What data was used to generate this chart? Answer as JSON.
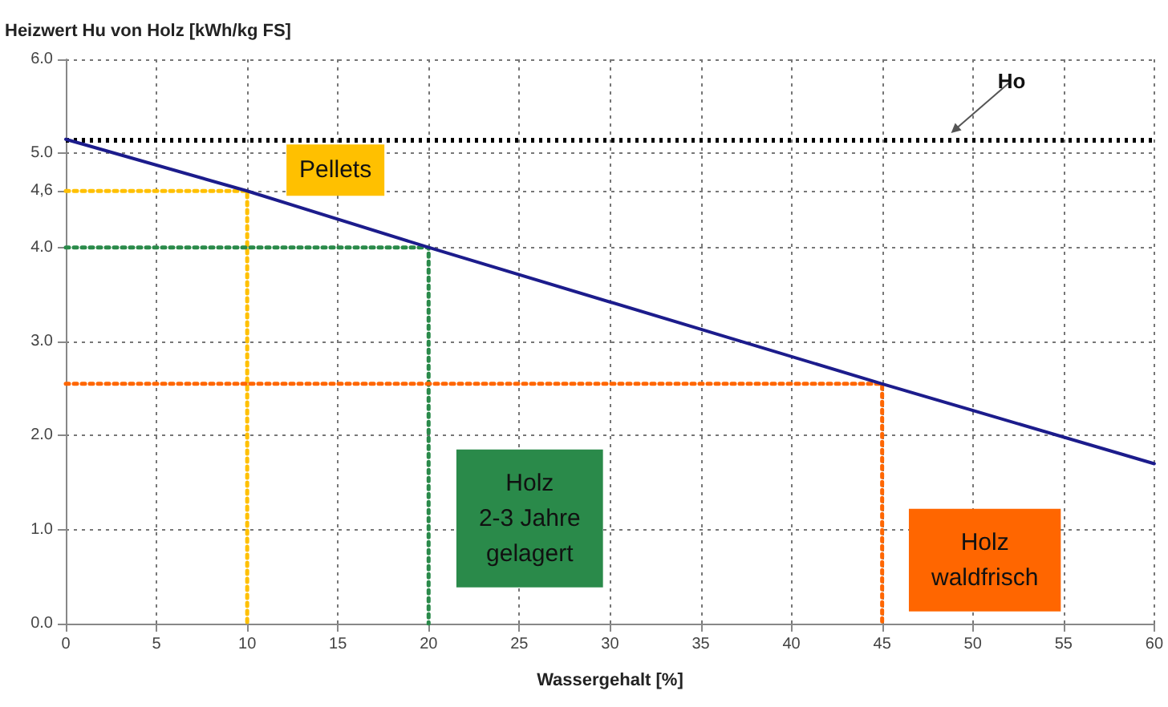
{
  "chart_data": {
    "type": "line",
    "ylabel": "Heizwert Hu von Holz [kWh/kg FS]",
    "xlabel": "Wassergehalt [%]",
    "xlim": [
      0,
      60
    ],
    "xticks": [
      0,
      5,
      10,
      15,
      20,
      25,
      30,
      35,
      40,
      45,
      50,
      55,
      60
    ],
    "ylim": [
      0,
      6
    ],
    "yticks": [
      {
        "value": 0,
        "label": "0.0"
      },
      {
        "value": 1,
        "label": "1.0"
      },
      {
        "value": 2,
        "label": "2.0"
      },
      {
        "value": 3,
        "label": "3.0"
      },
      {
        "value": 4,
        "label": "4.0"
      },
      {
        "value": 4.6,
        "label": "4,6"
      },
      {
        "value": 5,
        "label": "5.0"
      },
      {
        "value": 6,
        "label": "6.0"
      }
    ],
    "grid": true,
    "legend": false,
    "marker": "none",
    "series": [
      {
        "color": "#1c1c8c",
        "x": [
          0,
          10,
          20,
          45,
          60
        ],
        "values": [
          5.15,
          4.6,
          4.0,
          2.55,
          1.7
        ],
        "line_style": "solid"
      },
      {
        "name": "Pellets",
        "color": "#ffc000",
        "x": [
          0,
          10,
          10
        ],
        "values": [
          4.6,
          4.6,
          0
        ],
        "line_style": "dotted"
      },
      {
        "name": "Holz\n2-3 Jahre\ngelagert",
        "color": "#2a8a4a",
        "x": [
          0,
          20,
          20
        ],
        "values": [
          4.0,
          4.0,
          0
        ],
        "line_style": "dotted"
      },
      {
        "name": "Holz\nwaldfrisch",
        "color": "#ff6600",
        "x": [
          0,
          45,
          45
        ],
        "values": [
          2.55,
          2.55,
          0
        ],
        "line_style": "dotted"
      }
    ],
    "ref_lines": [
      {
        "axis": "y",
        "value": 5.15,
        "color": "#000000",
        "line_style": "dotted"
      }
    ],
    "annotations": [
      {
        "text": "Ho",
        "x": 49,
        "y": 5.15
      }
    ]
  }
}
